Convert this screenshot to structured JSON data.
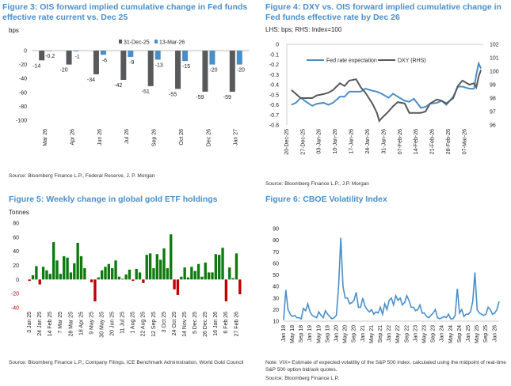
{
  "figures": {
    "f3": {
      "title": "Figure 3: OIS forward implied cumulative change in Fed funds effective rate current vs. Dec 25",
      "unit": "bps",
      "source": "Source: Bloomberg Finance L.P., Federal Reserve, J. P. Morgan"
    },
    "f4": {
      "title": "Figure 4: DXY vs. OIS forward implied cumulative change in Fed funds effective rate by Dec 26",
      "unit": "LHS: bps; RHS: Index=100",
      "source": "Source: Bloomberg Finance L.P., J.P. Morgan"
    },
    "f5": {
      "title": "Figure 5: Weekly change in global gold ETF holdings",
      "unit": "Tonnes",
      "source": "Source: Bloomberg Finance L.P., Company Filings, ICE Benchmark Administration, World Gold Council"
    },
    "f6": {
      "title": "Figure 6: CBOE Volatility Index",
      "note": "Note: VIX= Estimate of expected volatility of the S&P 500 Index, calculated using the midpoint of real-time S&P 500 option bid/ask quotes.",
      "source": "Source: Bloomberg Finance L.P."
    }
  },
  "chart_data": [
    {
      "type": "bar",
      "categories": [
        "Mar 26",
        "Apr 26",
        "Jun 26",
        "Jul 26",
        "Sep 26",
        "Oct 26",
        "Dec 26",
        "Jan 27"
      ],
      "series": [
        {
          "name": "31-Dec-25",
          "color": "#58595b",
          "values": [
            -14,
            -20,
            -34,
            -42,
            -51,
            -55,
            -59,
            -59
          ],
          "labels": [
            "-14",
            "-20",
            "-34",
            "-42",
            "-51",
            "-55",
            "-59",
            "-59"
          ]
        },
        {
          "name": "13-Mar-26",
          "color": "#4a8ec9",
          "values": [
            -0.2,
            -1,
            -6,
            -9,
            -13,
            -15,
            -20,
            -20
          ],
          "labels": [
            "-0.2",
            "-1",
            "-6",
            "-9",
            "-13",
            "-15",
            "-20",
            "-20"
          ]
        }
      ],
      "ylim": [
        -100,
        0
      ],
      "yticks": [
        "0",
        "-20",
        "-40",
        "-60",
        "-80",
        "-100"
      ],
      "ylabel": "bps",
      "legend": "top"
    },
    {
      "type": "line",
      "xticks": [
        "20-Dec-25",
        "27-Dec-25",
        "03-Jan-26",
        "10-Jan-26",
        "17-Jan-26",
        "24-Jan-26",
        "31-Jan-26",
        "07-Feb-26",
        "14-Feb-26",
        "21-Feb-26",
        "28-Feb-26",
        "07-Mar-26"
      ],
      "x": [
        "2025-12-22",
        "2025-12-24",
        "2025-12-26",
        "2025-12-29",
        "2025-12-31",
        "2026-01-02",
        "2026-01-05",
        "2026-01-07",
        "2026-01-09",
        "2026-01-12",
        "2026-01-14",
        "2026-01-16",
        "2026-01-19",
        "2026-01-21",
        "2026-01-23",
        "2026-01-26",
        "2026-01-28",
        "2026-01-29",
        "2026-01-30",
        "2026-02-02",
        "2026-02-04",
        "2026-02-06",
        "2026-02-09",
        "2026-02-11",
        "2026-02-13",
        "2026-02-16",
        "2026-02-18",
        "2026-02-20",
        "2026-02-23",
        "2026-02-25",
        "2026-02-27",
        "2026-03-02",
        "2026-03-04",
        "2026-03-06",
        "2026-03-09",
        "2026-03-11",
        "2026-03-12",
        "2026-03-13",
        "2026-03-14"
      ],
      "series": [
        {
          "name": "Fed rate expectation",
          "axis": "left",
          "color": "#4a8ec9",
          "values": [
            -0.6,
            -0.58,
            -0.53,
            -0.58,
            -0.61,
            -0.59,
            -0.58,
            -0.6,
            -0.58,
            -0.52,
            -0.52,
            -0.47,
            -0.47,
            -0.47,
            -0.44,
            -0.46,
            -0.47,
            -0.48,
            -0.49,
            -0.53,
            -0.49,
            -0.52,
            -0.56,
            -0.57,
            -0.54,
            -0.63,
            -0.62,
            -0.59,
            -0.58,
            -0.56,
            -0.6,
            -0.52,
            -0.42,
            -0.42,
            -0.44,
            -0.44,
            -0.3,
            -0.19,
            -0.24
          ]
        },
        {
          "name": "DXY (RHS)",
          "axis": "right",
          "color": "#58595b",
          "values": [
            98.6,
            98.3,
            98.0,
            98.0,
            98.0,
            98.2,
            98.3,
            98.4,
            98.6,
            99.1,
            98.9,
            99.3,
            99.4,
            98.8,
            98.4,
            97.6,
            96.9,
            96.3,
            96.5,
            97.0,
            97.4,
            97.7,
            97.6,
            96.9,
            96.9,
            96.9,
            97.0,
            97.6,
            97.9,
            97.8,
            97.6,
            98.0,
            98.9,
            99.3,
            99.0,
            99.1,
            98.8,
            99.6,
            100.1
          ]
        }
      ],
      "ylim": [
        -0.8,
        0
      ],
      "yticks": [
        "0",
        "-0.1",
        "-0.2",
        "-0.3",
        "-0.4",
        "-0.5",
        "-0.6",
        "-0.7",
        "-0.8"
      ],
      "y2lim": [
        96,
        102
      ],
      "y2ticks": [
        "102",
        "101",
        "100",
        "99",
        "98",
        "97",
        "96"
      ],
      "legend": "top"
    },
    {
      "type": "bar",
      "xticks": [
        "3 Jan 25",
        "24 Jan 25",
        "14 Feb 25",
        "7 Mar 25",
        "28 Mar 25",
        "18 Apr 25",
        "9 May 25",
        "30 May 25",
        "20 Jun 25",
        "11 Jul 25",
        "1 Aug 25",
        "22 Aug 25",
        "12 Sep 25",
        "3 Oct 25",
        "24 Oct 25",
        "14 Nov 25",
        "5 Dec 25",
        "26 Dec 25",
        "16 Jan 26",
        "6 Feb 26",
        "27 Feb 26"
      ],
      "values": [
        -2,
        6,
        19,
        -7,
        18,
        13,
        8,
        53,
        27,
        8,
        33,
        31,
        10,
        23,
        52,
        33,
        16,
        0,
        -4,
        -31,
        3,
        13,
        18,
        22,
        16,
        27,
        4,
        1,
        7,
        14,
        -2,
        15,
        10,
        -5,
        35,
        37,
        16,
        36,
        28,
        44,
        16,
        64,
        -14,
        -22,
        4,
        17,
        3,
        18,
        12,
        22,
        4,
        24,
        10,
        10,
        36,
        35,
        45,
        -31,
        17,
        2,
        37,
        -21
      ],
      "positive_color": "#0e7a0e",
      "negative_color": "#c00000",
      "ylim": [
        -40,
        80
      ],
      "yticks": [
        "80",
        "60",
        "40",
        "20",
        "0",
        "-20",
        "-40"
      ],
      "ylabel": "Tonnes"
    },
    {
      "type": "line",
      "xticks": [
        "Jan 18",
        "May 18",
        "Sep 18",
        "Jan 19",
        "May 19",
        "Sep 19",
        "Jan 20",
        "May 20",
        "Sep 20",
        "Jan 21",
        "May 21",
        "Sep 21",
        "Jan 22",
        "May 22",
        "Sep 22",
        "Jan 23",
        "May 23",
        "Sep 23",
        "Jan 24",
        "May 24",
        "Sep 24",
        "Jan 25",
        "May 25",
        "Sep 25",
        "Jan 26"
      ],
      "x_start": "2018-01",
      "x_step": "month",
      "color": "#4a8ec9",
      "values": [
        11,
        37,
        20,
        16,
        14,
        15,
        13,
        13,
        12,
        21,
        19,
        25,
        18,
        15,
        14,
        13,
        18,
        15,
        13,
        19,
        16,
        14,
        12,
        13,
        15,
        40,
        82,
        40,
        30,
        30,
        25,
        26,
        28,
        35,
        22,
        22,
        30,
        23,
        20,
        18,
        20,
        16,
        18,
        17,
        22,
        16,
        25,
        20,
        28,
        30,
        24,
        32,
        28,
        30,
        24,
        26,
        32,
        28,
        22,
        22,
        19,
        20,
        24,
        17,
        17,
        14,
        13,
        15,
        17,
        20,
        13,
        12,
        13,
        14,
        13,
        16,
        12,
        12,
        15,
        38,
        17,
        20,
        14,
        16,
        16,
        18,
        27,
        52,
        20,
        17,
        16,
        15,
        16,
        22,
        20,
        16,
        17,
        20,
        27
      ],
      "ylim": [
        10,
        90
      ],
      "yticks": [
        "90",
        "80",
        "70",
        "60",
        "50",
        "40",
        "30",
        "20",
        "10"
      ]
    }
  ]
}
